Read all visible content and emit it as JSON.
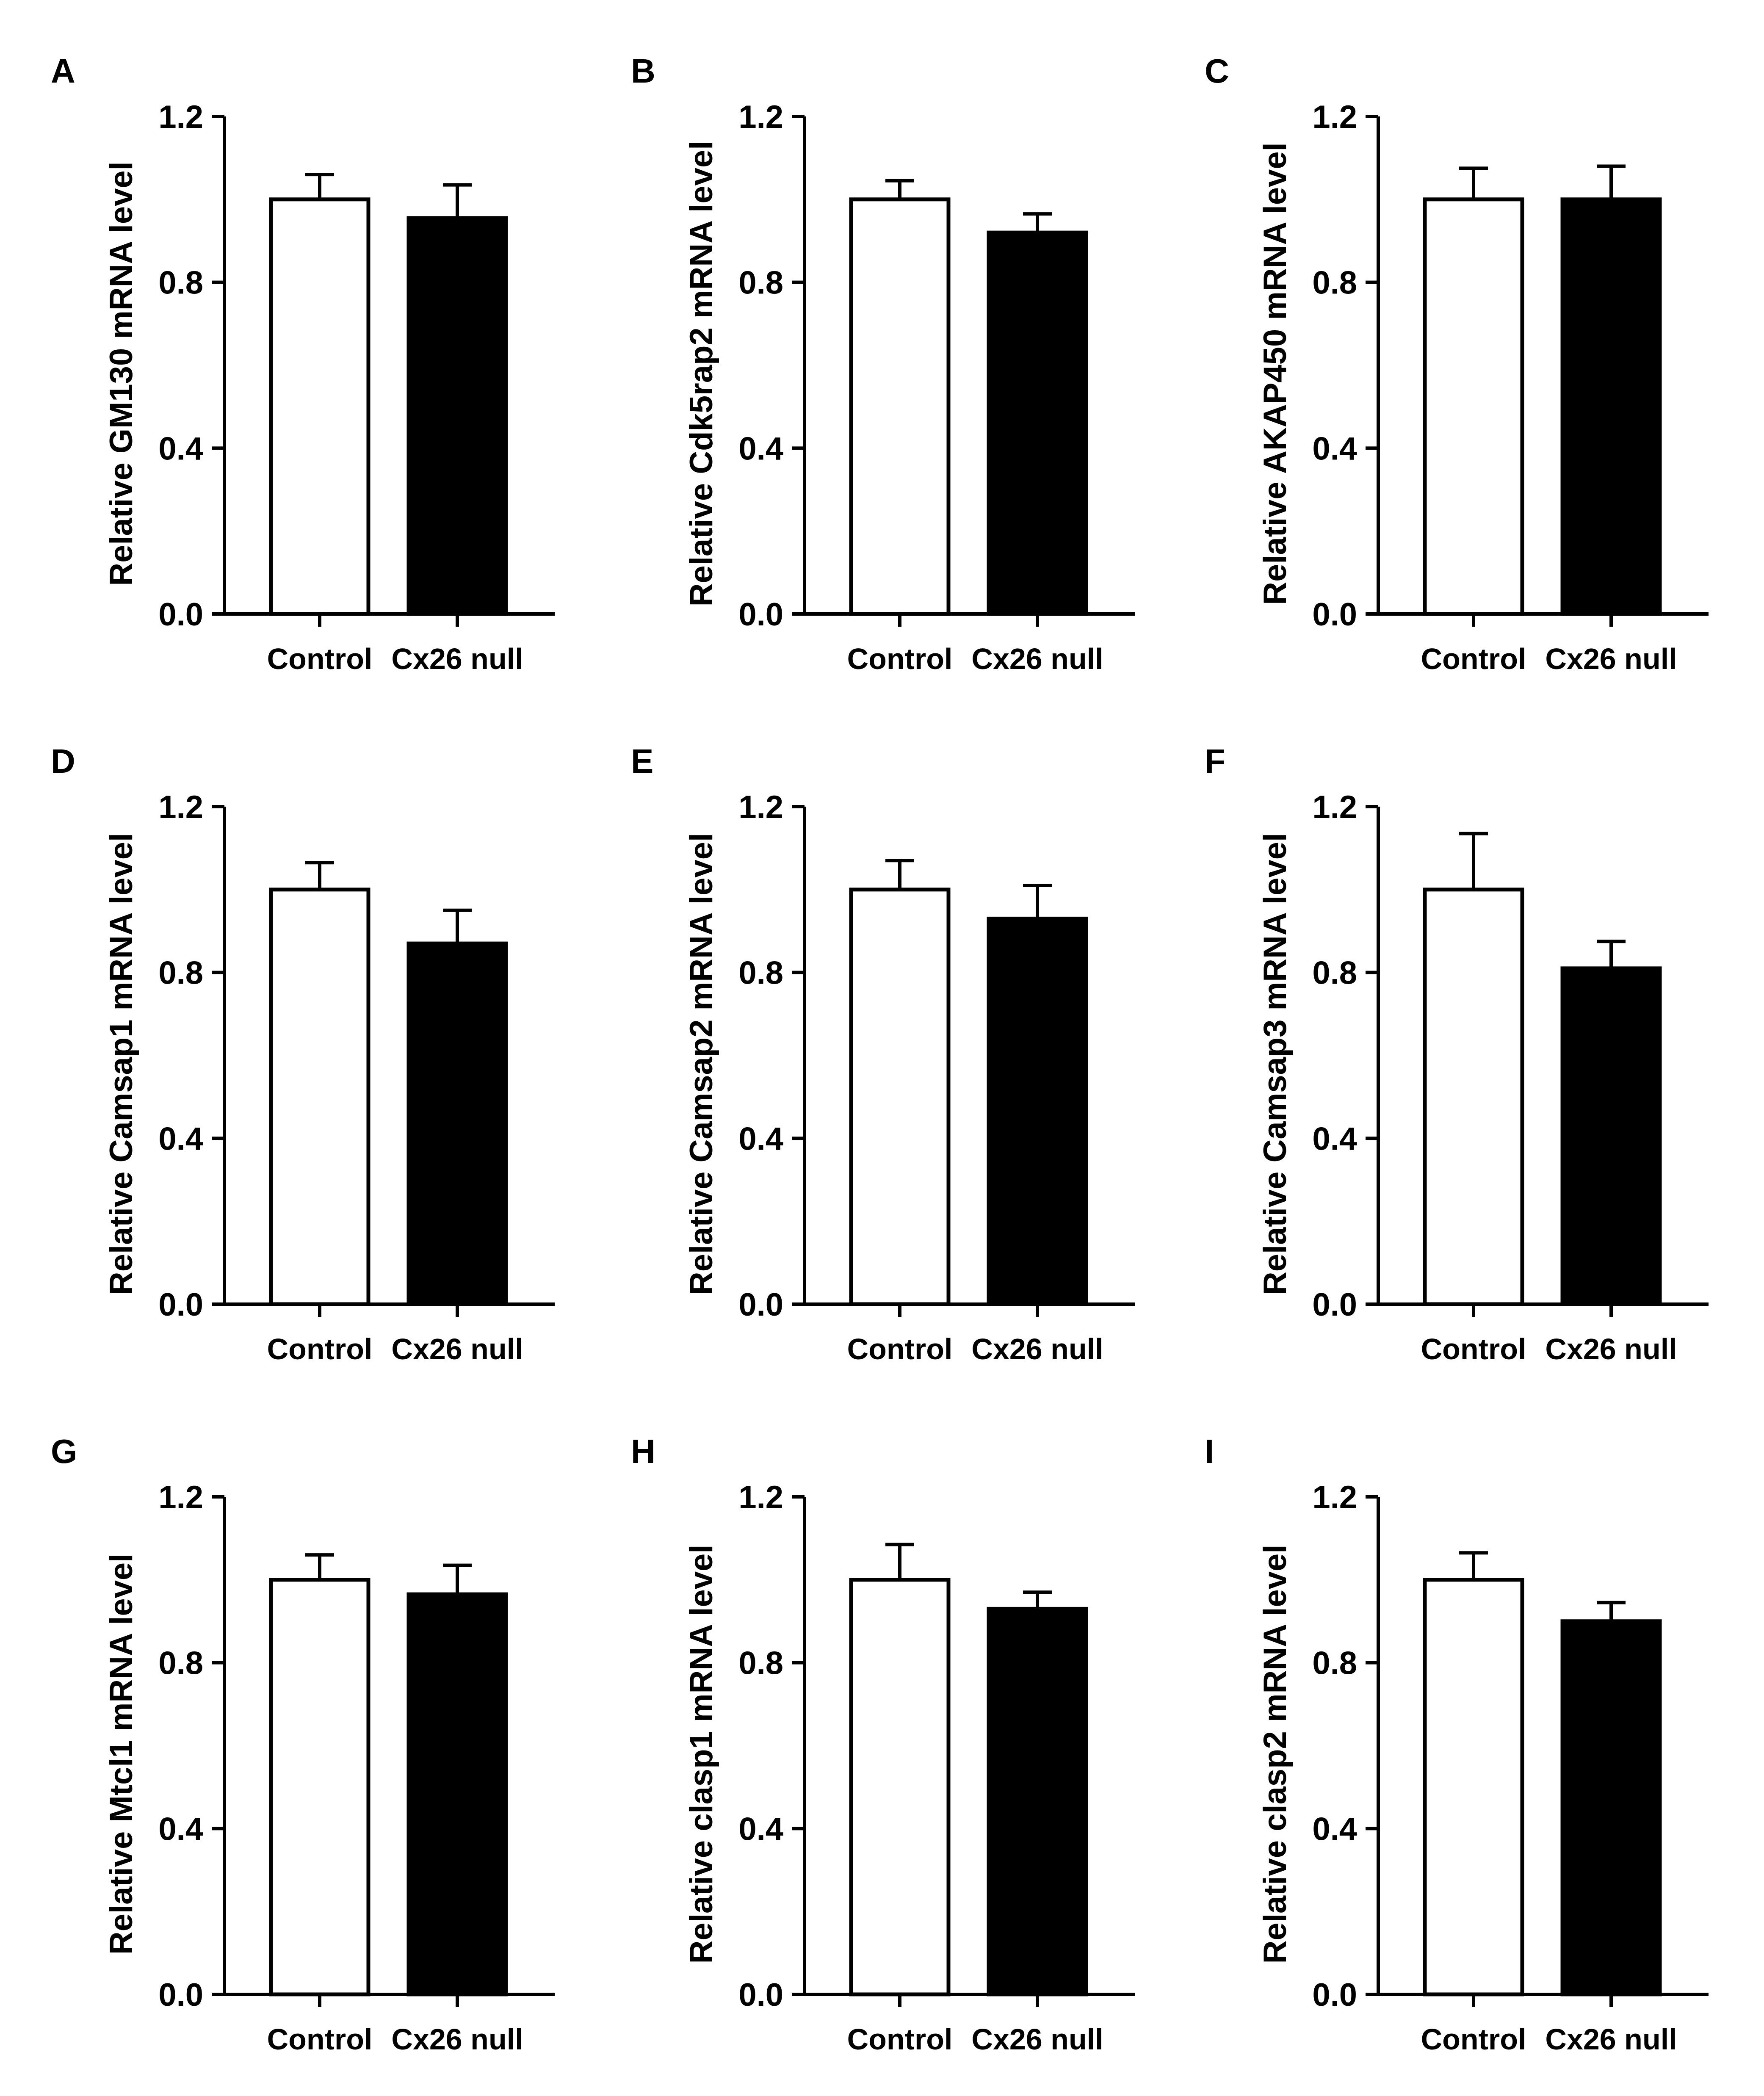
{
  "figure": {
    "bar_colors": {
      "Control": "#ffffff",
      "Cx26 null": "#000000"
    },
    "stroke_color": "#000000"
  },
  "chart_data": [
    {
      "panel": "A",
      "type": "bar",
      "title": "",
      "xlabel": "",
      "ylabel": "Relative GM130 mRNA level",
      "categories": [
        "Control",
        "Cx26 null"
      ],
      "values": [
        1.0,
        0.955
      ],
      "error": [
        0.06,
        0.08
      ],
      "ylim": [
        0,
        1.2
      ],
      "yticks": [
        "0.0",
        "0.4",
        "0.8",
        "1.2"
      ]
    },
    {
      "panel": "B",
      "type": "bar",
      "title": "",
      "xlabel": "",
      "ylabel": "Relative Cdk5rap2 mRNA level",
      "categories": [
        "Control",
        "Cx26 null"
      ],
      "values": [
        1.0,
        0.92
      ],
      "error": [
        0.045,
        0.045
      ],
      "ylim": [
        0,
        1.2
      ],
      "yticks": [
        "0.0",
        "0.4",
        "0.8",
        "1.2"
      ]
    },
    {
      "panel": "C",
      "type": "bar",
      "title": "",
      "xlabel": "",
      "ylabel": "Relative AKAP450 mRNA level",
      "categories": [
        "Control",
        "Cx26 null"
      ],
      "values": [
        1.0,
        1.0
      ],
      "error": [
        0.075,
        0.08
      ],
      "ylim": [
        0,
        1.2
      ],
      "yticks": [
        "0.0",
        "0.4",
        "0.8",
        "1.2"
      ]
    },
    {
      "panel": "D",
      "type": "bar",
      "title": "",
      "xlabel": "",
      "ylabel": "Relative Camsap1 mRNA level",
      "categories": [
        "Control",
        "Cx26 null"
      ],
      "values": [
        1.0,
        0.87
      ],
      "error": [
        0.065,
        0.08
      ],
      "ylim": [
        0,
        1.2
      ],
      "yticks": [
        "0.0",
        "0.4",
        "0.8",
        "1.2"
      ]
    },
    {
      "panel": "E",
      "type": "bar",
      "title": "",
      "xlabel": "",
      "ylabel": "Relative Camsap2 mRNA level",
      "categories": [
        "Control",
        "Cx26 null"
      ],
      "values": [
        1.0,
        0.93
      ],
      "error": [
        0.07,
        0.08
      ],
      "ylim": [
        0,
        1.2
      ],
      "yticks": [
        "0.0",
        "0.4",
        "0.8",
        "1.2"
      ]
    },
    {
      "panel": "F",
      "type": "bar",
      "title": "",
      "xlabel": "",
      "ylabel": "Relative Camsap3 mRNA level",
      "categories": [
        "Control",
        "Cx26 null"
      ],
      "values": [
        1.0,
        0.81
      ],
      "error": [
        0.135,
        0.065
      ],
      "ylim": [
        0,
        1.2
      ],
      "yticks": [
        "0.0",
        "0.4",
        "0.8",
        "1.2"
      ]
    },
    {
      "panel": "G",
      "type": "bar",
      "title": "",
      "xlabel": "",
      "ylabel": "Relative Mtcl1 mRNA level",
      "categories": [
        "Control",
        "Cx26 null"
      ],
      "values": [
        1.0,
        0.965
      ],
      "error": [
        0.06,
        0.07
      ],
      "ylim": [
        0,
        1.2
      ],
      "yticks": [
        "0.0",
        "0.4",
        "0.8",
        "1.2"
      ]
    },
    {
      "panel": "H",
      "type": "bar",
      "title": "",
      "xlabel": "",
      "ylabel": "Relative clasp1 mRNA level",
      "categories": [
        "Control",
        "Cx26 null"
      ],
      "values": [
        1.0,
        0.93
      ],
      "error": [
        0.085,
        0.04
      ],
      "ylim": [
        0,
        1.2
      ],
      "yticks": [
        "0.0",
        "0.4",
        "0.8",
        "1.2"
      ]
    },
    {
      "panel": "I",
      "type": "bar",
      "title": "",
      "xlabel": "",
      "ylabel": "Relative clasp2 mRNA level",
      "categories": [
        "Control",
        "Cx26 null"
      ],
      "values": [
        1.0,
        0.9
      ],
      "error": [
        0.065,
        0.045
      ],
      "ylim": [
        0,
        1.2
      ],
      "yticks": [
        "0.0",
        "0.4",
        "0.8",
        "1.2"
      ]
    }
  ]
}
